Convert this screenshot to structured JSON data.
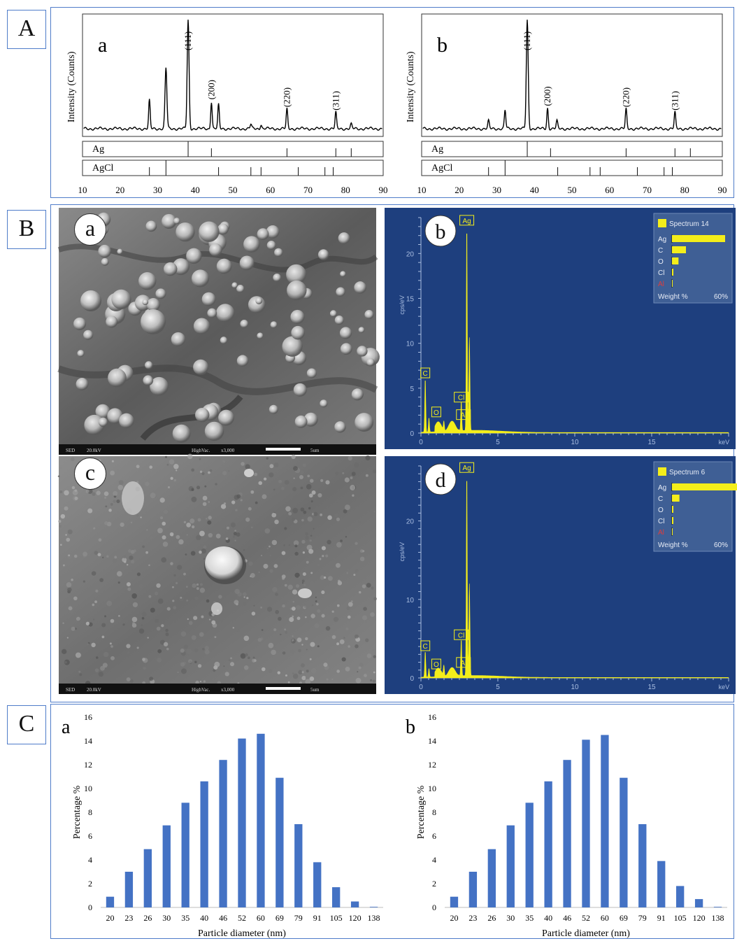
{
  "sections": {
    "A": "A",
    "B": "B",
    "C": "C"
  },
  "colors": {
    "frame": "#4f7cc9",
    "bar": "#4472c4",
    "eds_bg": "#1e3f7e",
    "eds_spectrum": "#f4ee1a"
  },
  "chart_data": [
    {
      "id": "xrd-a",
      "type": "line",
      "panel_label": "a",
      "ylabel": "Intensity (Counts)",
      "xlim": [
        10,
        90
      ],
      "xticks": [
        10,
        20,
        30,
        40,
        50,
        60,
        70,
        80,
        90
      ],
      "peaks": [
        {
          "x": 27.8,
          "h": 0.26
        },
        {
          "x": 32.2,
          "h": 0.56
        },
        {
          "x": 38.1,
          "h": 1.0
        },
        {
          "x": 44.3,
          "h": 0.25
        },
        {
          "x": 46.2,
          "h": 0.22
        },
        {
          "x": 54.8,
          "h": 0.04
        },
        {
          "x": 57.5,
          "h": 0.04
        },
        {
          "x": 64.4,
          "h": 0.18
        },
        {
          "x": 77.4,
          "h": 0.15
        },
        {
          "x": 81.5,
          "h": 0.04
        }
      ],
      "miller_labels": [
        {
          "x": 38.1,
          "text": "(111)"
        },
        {
          "x": 44.3,
          "text": "(200)"
        },
        {
          "x": 64.4,
          "text": "(220)"
        },
        {
          "x": 77.4,
          "text": "(311)"
        }
      ],
      "reference": [
        {
          "name": "Ag",
          "lines": [
            38.1,
            44.3,
            64.4,
            77.4,
            81.5
          ]
        },
        {
          "name": "AgCl",
          "lines": [
            27.8,
            32.2,
            46.2,
            54.8,
            57.5,
            67.4,
            74.5,
            76.7
          ]
        }
      ]
    },
    {
      "id": "xrd-b",
      "type": "line",
      "panel_label": "b",
      "ylabel": "Intensity (Counts)",
      "xlim": [
        10,
        90
      ],
      "xticks": [
        10,
        20,
        30,
        40,
        50,
        60,
        70,
        80,
        90
      ],
      "peaks": [
        {
          "x": 27.8,
          "h": 0.07
        },
        {
          "x": 32.2,
          "h": 0.17
        },
        {
          "x": 38.1,
          "h": 1.0
        },
        {
          "x": 43.5,
          "h": 0.19
        },
        {
          "x": 46.0,
          "h": 0.07
        },
        {
          "x": 64.4,
          "h": 0.18
        },
        {
          "x": 77.4,
          "h": 0.15
        }
      ],
      "miller_labels": [
        {
          "x": 38.1,
          "text": "(111)"
        },
        {
          "x": 43.5,
          "text": "(200)"
        },
        {
          "x": 64.4,
          "text": "(220)"
        },
        {
          "x": 77.4,
          "text": "(311)"
        }
      ],
      "reference": [
        {
          "name": "Ag",
          "lines": [
            38.1,
            44.3,
            64.4,
            77.4,
            81.5
          ]
        },
        {
          "name": "AgCl",
          "lines": [
            27.8,
            32.2,
            46.2,
            54.8,
            57.5,
            67.4,
            74.5,
            76.7
          ]
        }
      ]
    },
    {
      "id": "eds-b",
      "type": "line",
      "panel_label": "b",
      "ylabel": "cps/eV",
      "xunit": "keV",
      "xlim": [
        0,
        20
      ],
      "ylim": [
        0,
        24
      ],
      "xticks": [
        0,
        5,
        10,
        15
      ],
      "yticks": [
        0,
        5,
        10,
        15,
        20
      ],
      "peaks": [
        {
          "x": 0.28,
          "y": 6.0,
          "label": "C"
        },
        {
          "x": 0.52,
          "y": 1.6,
          "label": "O"
        },
        {
          "x": 1.49,
          "y": 1.0,
          "label": "Al"
        },
        {
          "x": 2.62,
          "y": 3.3,
          "label": "Cl"
        },
        {
          "x": 2.98,
          "y": 23.0,
          "label": "Ag"
        }
      ],
      "legend": {
        "title": "Spectrum 14",
        "items": [
          {
            "label": "Ag",
            "value": 57
          },
          {
            "label": "C",
            "value": 15
          },
          {
            "label": "O",
            "value": 7
          },
          {
            "label": "Cl",
            "value": 1.5
          },
          {
            "label": "Al",
            "value": 0.3
          }
        ],
        "footer_left": "Weight %",
        "footer_right": "60%",
        "max": 60
      }
    },
    {
      "id": "eds-d",
      "type": "line",
      "panel_label": "d",
      "ylabel": "cps/eV",
      "xunit": "keV",
      "xlim": [
        0,
        20
      ],
      "ylim": [
        0,
        27
      ],
      "xticks": [
        0,
        5,
        10,
        15
      ],
      "yticks": [
        0,
        10,
        20
      ],
      "peaks": [
        {
          "x": 0.28,
          "y": 3.3,
          "label": "C"
        },
        {
          "x": 0.52,
          "y": 1.1,
          "label": "O"
        },
        {
          "x": 1.49,
          "y": 1.3,
          "label": "Al"
        },
        {
          "x": 2.62,
          "y": 4.7,
          "label": "Cl"
        },
        {
          "x": 2.98,
          "y": 26.0,
          "label": "Ag"
        }
      ],
      "legend": {
        "title": "Spectrum 6",
        "items": [
          {
            "label": "Ag",
            "value": 75
          },
          {
            "label": "C",
            "value": 8
          },
          {
            "label": "O",
            "value": 1.5
          },
          {
            "label": "Cl",
            "value": 1.5
          },
          {
            "label": "Al",
            "value": 0.3
          }
        ],
        "footer_left": "Weight %",
        "footer_right": "60%",
        "max": 60
      }
    },
    {
      "id": "psd-a",
      "type": "bar",
      "panel_label": "a",
      "xlabel": "Particle diameter (nm)",
      "ylabel": "Percentage %",
      "ylim": [
        0,
        16
      ],
      "yticks": [
        0,
        2,
        4,
        6,
        8,
        10,
        12,
        14,
        16
      ],
      "categories": [
        "20",
        "23",
        "26",
        "30",
        "35",
        "40",
        "46",
        "52",
        "60",
        "69",
        "79",
        "91",
        "105",
        "120",
        "138"
      ],
      "values": [
        0.9,
        3.0,
        4.9,
        6.9,
        8.8,
        10.6,
        12.4,
        14.2,
        14.6,
        10.9,
        7.0,
        3.8,
        1.7,
        0.5,
        0.05
      ]
    },
    {
      "id": "psd-b",
      "type": "bar",
      "panel_label": "b",
      "xlabel": "Particle diameter (nm)",
      "ylabel": "Percentage %",
      "ylim": [
        0,
        16
      ],
      "yticks": [
        0,
        2,
        4,
        6,
        8,
        10,
        12,
        14,
        16
      ],
      "categories": [
        "20",
        "23",
        "26",
        "30",
        "35",
        "40",
        "46",
        "52",
        "60",
        "69",
        "79",
        "91",
        "105",
        "120",
        "138"
      ],
      "values": [
        0.9,
        3.0,
        4.9,
        6.9,
        8.8,
        10.6,
        12.4,
        14.1,
        14.5,
        10.9,
        7.0,
        3.9,
        1.8,
        0.7,
        0.05
      ]
    }
  ],
  "sem": [
    {
      "label": "a",
      "info_left": "SED",
      "info_kv": "20.0kV",
      "info_vac": "HighVac.",
      "info_mag": "x3,000",
      "info_scale": "5um"
    },
    {
      "label": "c",
      "info_left": "SED",
      "info_kv": "20.0kV",
      "info_vac": "HighVac.",
      "info_mag": "x3,000",
      "info_scale": "5um"
    }
  ]
}
